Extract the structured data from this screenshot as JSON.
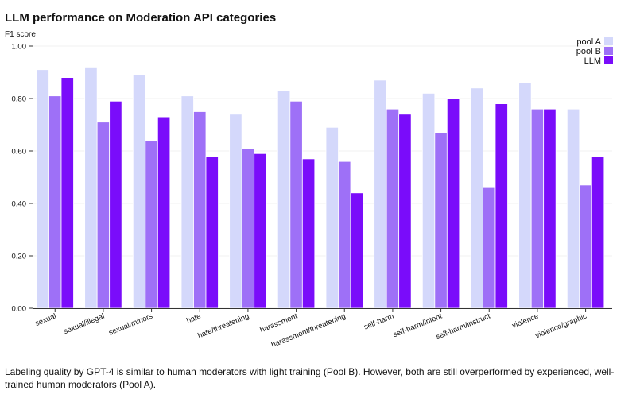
{
  "page": {
    "caption": "Labeling quality by GPT-4 is similar to human moderators with light training (Pool B). However, both are still overperformed by experienced, well-trained human moderators (Pool A)."
  },
  "chart_data": {
    "type": "bar",
    "title": "LLM performance on Moderation API categories",
    "ylabel": "F1 score",
    "xlabel": "",
    "ylim": [
      0,
      1
    ],
    "yticks": [
      "0.00",
      "0.20",
      "0.40",
      "0.60",
      "0.80",
      "1.00"
    ],
    "grid": true,
    "legend_position": "top-right",
    "categories": [
      "sexual",
      "sexual/illegal",
      "sexual/minors",
      "hate",
      "hate/threatening",
      "harassment",
      "harassment/threatening",
      "self-harm",
      "self-harm/intent",
      "self-harm/instruct",
      "violence",
      "violence/graphic"
    ],
    "series": [
      {
        "name": "pool A",
        "color": "#d4d8fb",
        "values": [
          0.91,
          0.92,
          0.89,
          0.81,
          0.74,
          0.83,
          0.69,
          0.87,
          0.82,
          0.84,
          0.86,
          0.76
        ]
      },
      {
        "name": "pool B",
        "color": "#9e70f7",
        "values": [
          0.81,
          0.71,
          0.64,
          0.75,
          0.61,
          0.79,
          0.56,
          0.76,
          0.67,
          0.46,
          0.76,
          0.47
        ]
      },
      {
        "name": "LLM",
        "color": "#7a0cfa",
        "values": [
          0.88,
          0.79,
          0.73,
          0.58,
          0.59,
          0.57,
          0.44,
          0.74,
          0.8,
          0.78,
          0.76,
          0.58
        ]
      }
    ]
  }
}
